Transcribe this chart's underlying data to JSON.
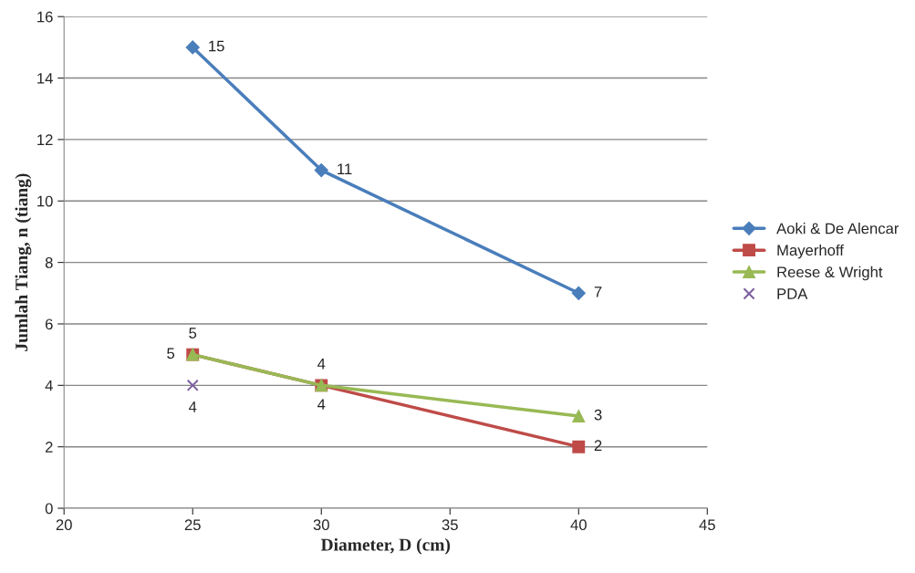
{
  "chart_data": {
    "type": "line",
    "xlabel": "Diameter, D (cm)",
    "ylabel": "Jumlah Tiang, n (tiang)",
    "xlim": [
      20,
      45
    ],
    "xticks": [
      20,
      25,
      30,
      35,
      40,
      45
    ],
    "ylim": [
      0,
      16
    ],
    "yticks": [
      0,
      2,
      4,
      6,
      8,
      10,
      12,
      14,
      16
    ],
    "grid": "y",
    "legend": "right",
    "data_labels": true,
    "series": [
      {
        "name": "Aoki & De Alencar",
        "color": "#4a7ebb",
        "marker": "diamond",
        "x": [
          25,
          30,
          40
        ],
        "values": [
          15,
          11,
          7
        ]
      },
      {
        "name": "Mayerhoff",
        "color": "#be4b48",
        "marker": "square",
        "x": [
          25,
          30,
          40
        ],
        "values": [
          5,
          4,
          2
        ]
      },
      {
        "name": "Reese & Wright",
        "color": "#98b954",
        "marker": "triangle",
        "x": [
          25,
          30,
          40
        ],
        "values": [
          5,
          4,
          3
        ]
      },
      {
        "name": "PDA",
        "color": "#7d60a0",
        "marker": "cross",
        "type": "scatter",
        "x": [
          25
        ],
        "values": [
          4
        ]
      }
    ]
  }
}
